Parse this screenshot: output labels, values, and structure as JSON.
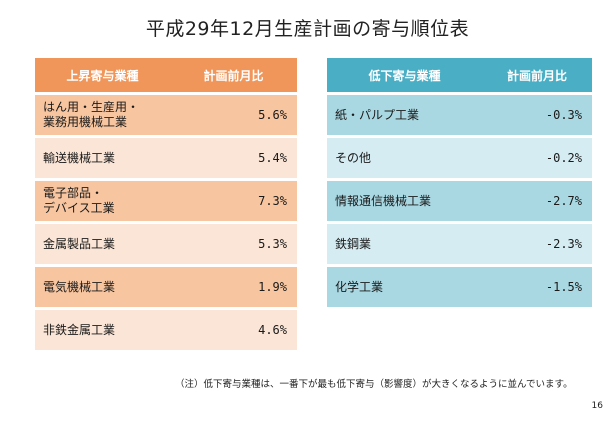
{
  "title": "平成29年12月生産計画の寄与順位表",
  "up": {
    "header_industry": "上昇寄与業種",
    "header_value": "計画前月比",
    "rows": [
      {
        "line1": "はん用・生産用・",
        "line2": "業務用機械工業",
        "value": "5.6%"
      },
      {
        "line1": "輸送機械工業",
        "line2": "",
        "value": "5.4%"
      },
      {
        "line1": "電子部品・",
        "line2": "デバイス工業",
        "value": "7.3%"
      },
      {
        "line1": "金属製品工業",
        "line2": "",
        "value": "5.3%"
      },
      {
        "line1": "電気機械工業",
        "line2": "",
        "value": "1.9%"
      },
      {
        "line1": "非鉄金属工業",
        "line2": "",
        "value": "4.6%"
      }
    ]
  },
  "down": {
    "header_industry": "低下寄与業種",
    "header_value": "計画前月比",
    "rows": [
      {
        "industry": "紙・パルプ工業",
        "value": "-0.3%"
      },
      {
        "industry": "その他",
        "value": "-0.2%"
      },
      {
        "industry": "情報通信機械工業",
        "value": "-2.7%"
      },
      {
        "industry": "鉄鋼業",
        "value": "-2.3%"
      },
      {
        "industry": "化学工業",
        "value": "-1.5%"
      }
    ]
  },
  "note": "（注）低下寄与業種は、一番下が最も低下寄与（影響度）が大きくなるように並んでいます。",
  "page_number": "16"
}
